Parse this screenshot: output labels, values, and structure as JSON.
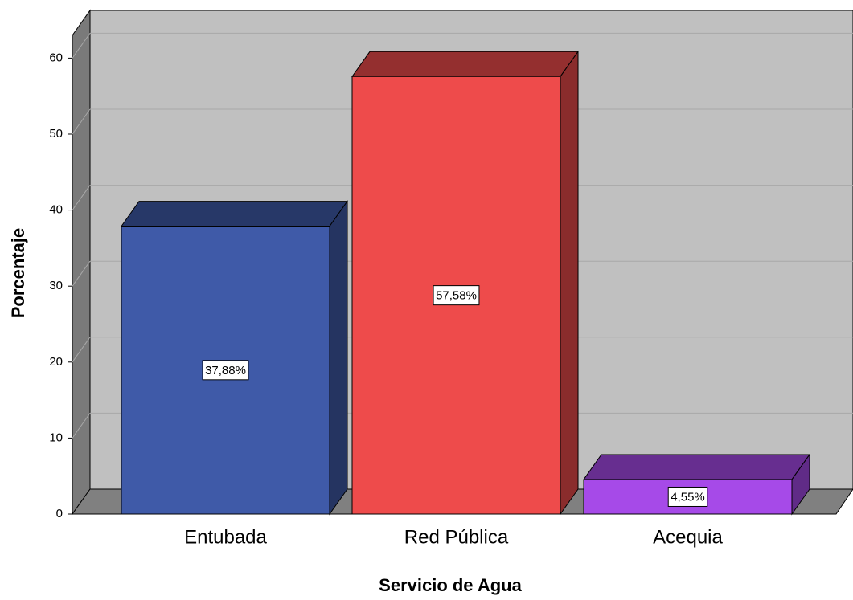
{
  "chart_data": {
    "type": "bar3d",
    "x_label": "Servicio de Agua",
    "y_label": "Porcentaje",
    "categories": [
      "Entubada",
      "Red Pública",
      "Acequia"
    ],
    "values": [
      37.88,
      57.58,
      4.55
    ],
    "value_labels": [
      "37,88%",
      "57,58%",
      "4,55%"
    ],
    "colors": [
      "#3f5aa8",
      "#ee4b4b",
      "#a64ae8"
    ],
    "ylim": [
      0,
      63
    ],
    "yticks": [
      0,
      10,
      20,
      30,
      40,
      50,
      60
    ],
    "grid": true
  }
}
